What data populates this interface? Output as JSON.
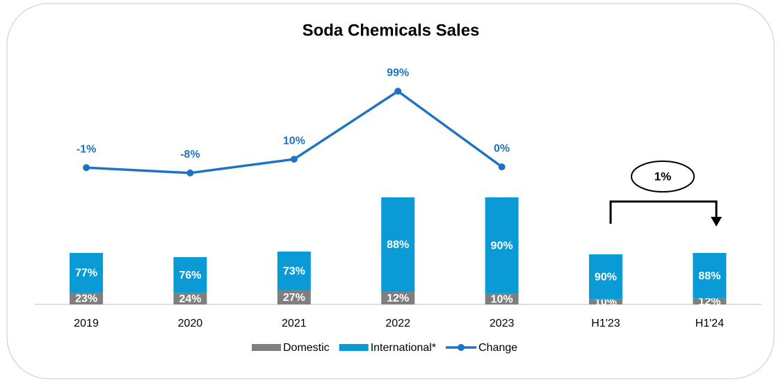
{
  "chart_data": {
    "type": "bar_line",
    "title": "Soda Chemicals Sales",
    "categories": [
      "2019",
      "2020",
      "2021",
      "2022",
      "2023",
      "H1'23",
      "H1'24"
    ],
    "totals": [
      74,
      68,
      76,
      154,
      154,
      72,
      74
    ],
    "ylim": [
      0,
      398
    ],
    "y2lim": [
      -180,
      182
    ],
    "series": [
      {
        "name": "Domestic",
        "type": "bar",
        "color": "#7f7f7f",
        "values": [
          23,
          24,
          27,
          12,
          10,
          10,
          12
        ],
        "value_labels": [
          "23%",
          "24%",
          "27%",
          "12%",
          "10%",
          "10%",
          "12%"
        ]
      },
      {
        "name": "International*",
        "type": "bar",
        "color": "#0a9ad6",
        "values": [
          77,
          76,
          73,
          88,
          90,
          90,
          88
        ],
        "value_labels": [
          "77%",
          "76%",
          "73%",
          "88%",
          "90%",
          "90%",
          "88%"
        ]
      },
      {
        "name": "Change",
        "type": "line",
        "axis": "y2",
        "color": "#1f74c2",
        "values": [
          -1,
          -8,
          10,
          99,
          0,
          null,
          null
        ],
        "value_labels": [
          "-1%",
          "-8%",
          "10%",
          "99%",
          "0%",
          null,
          null
        ]
      }
    ],
    "annotation": "1%"
  }
}
